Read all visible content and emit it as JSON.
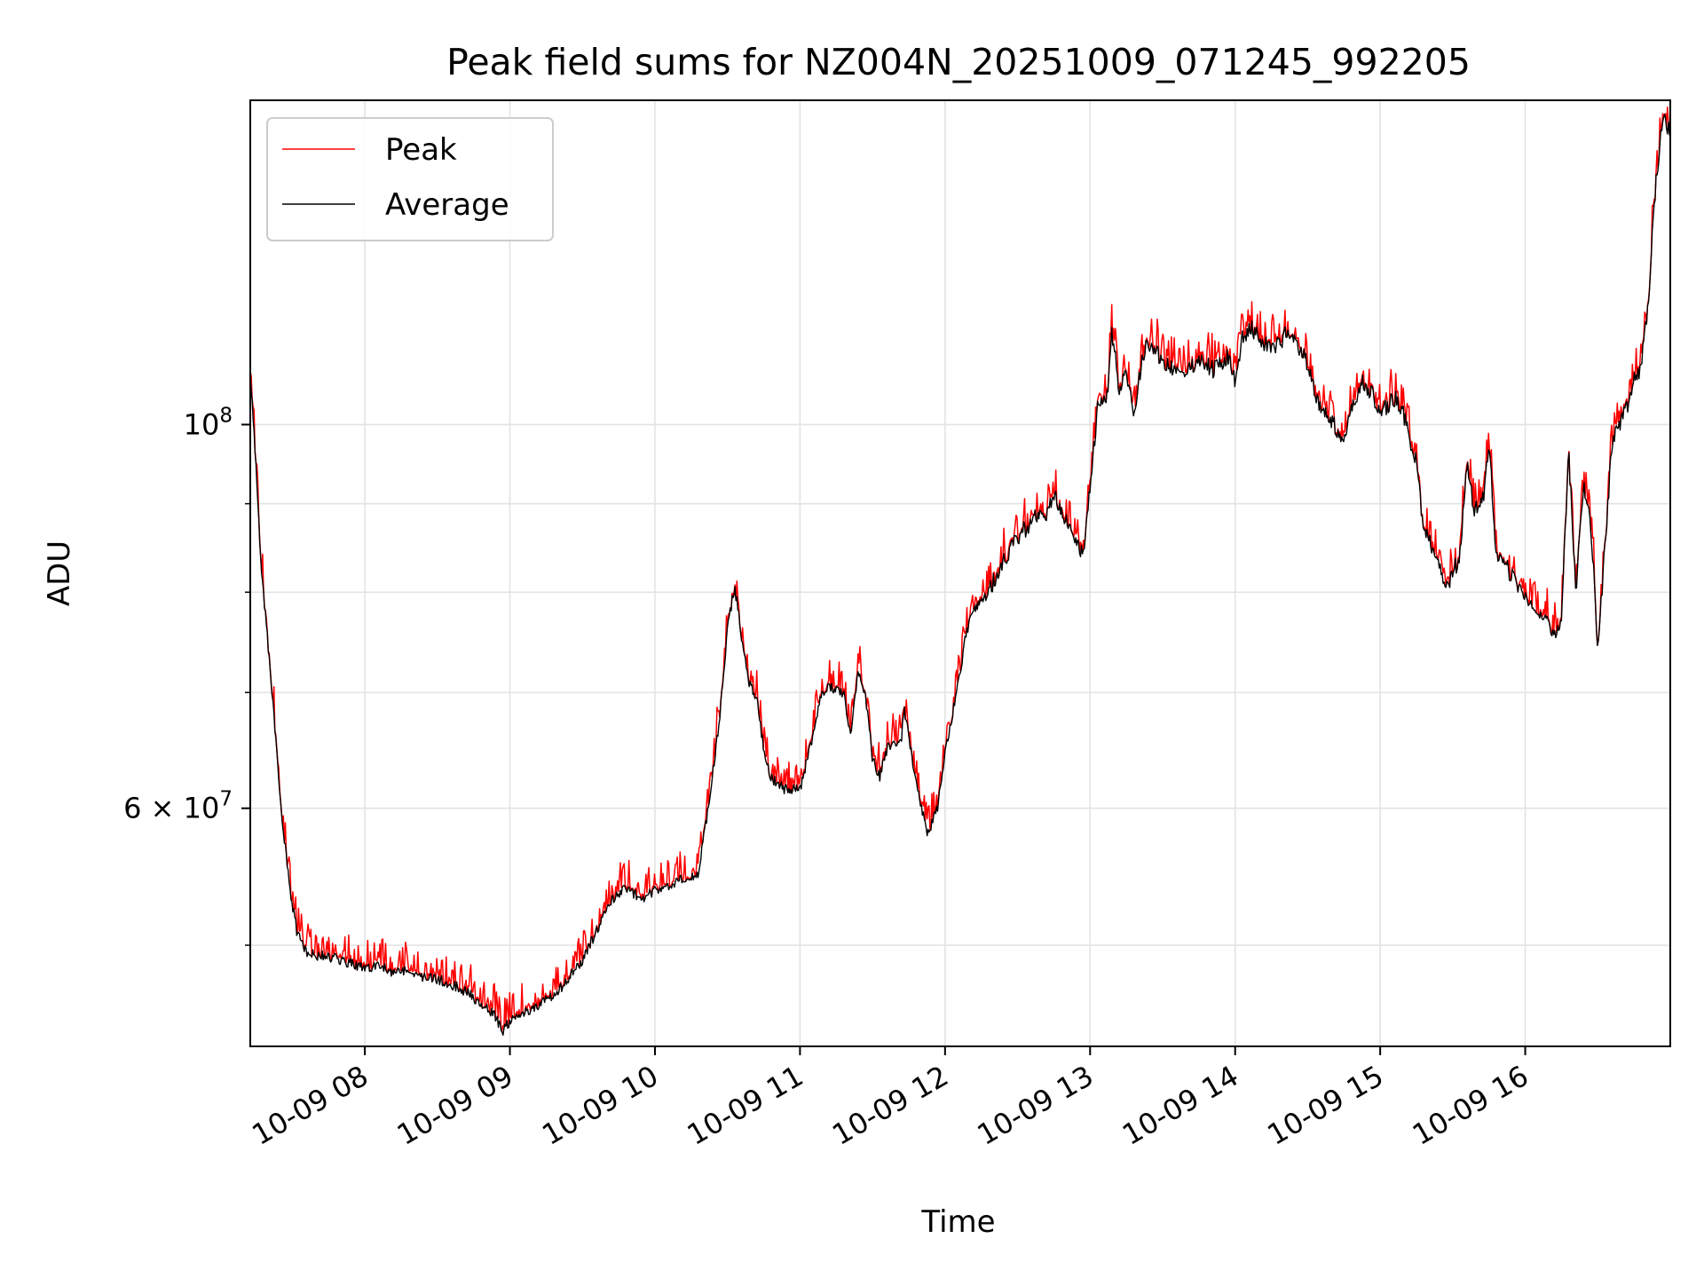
{
  "chart_data": {
    "type": "line",
    "title": "Peak field sums for NZ004N_20251009_071245_992205",
    "xlabel": "Time",
    "ylabel": "ADU",
    "y_scale": "log",
    "x_unit": "hours",
    "xlim": [
      7.21,
      17.0
    ],
    "ylim": [
      43700000,
      154000000
    ],
    "grid": true,
    "legend_placement": "upper-left",
    "x_ticks": [
      {
        "value": 8,
        "label": "10-09 08"
      },
      {
        "value": 9,
        "label": "10-09 09"
      },
      {
        "value": 10,
        "label": "10-09 10"
      },
      {
        "value": 11,
        "label": "10-09 11"
      },
      {
        "value": 12,
        "label": "10-09 12"
      },
      {
        "value": 13,
        "label": "10-09 13"
      },
      {
        "value": 14,
        "label": "10-09 14"
      },
      {
        "value": 15,
        "label": "10-09 15"
      },
      {
        "value": 16,
        "label": "10-09 16"
      }
    ],
    "y_major_ticks": [
      {
        "value": 60000000,
        "label_base": "6 × 10",
        "label_exp": "7"
      },
      {
        "value": 100000000,
        "label_base": "10",
        "label_exp": "8"
      }
    ],
    "y_minor_ticks": [
      50000000,
      70000000,
      80000000,
      90000000
    ],
    "average_points": [
      [
        7.21,
        108
      ],
      [
        7.26,
        90
      ],
      [
        7.3,
        80
      ],
      [
        7.36,
        70
      ],
      [
        7.42,
        60
      ],
      [
        7.48,
        54
      ],
      [
        7.53,
        51
      ],
      [
        7.6,
        49.5
      ],
      [
        7.7,
        49.3
      ],
      [
        7.8,
        49.1
      ],
      [
        7.9,
        48.8
      ],
      [
        8.0,
        48.5
      ],
      [
        8.1,
        48.6
      ],
      [
        8.2,
        48.2
      ],
      [
        8.3,
        48.4
      ],
      [
        8.4,
        47.9
      ],
      [
        8.5,
        47.8
      ],
      [
        8.6,
        47.4
      ],
      [
        8.7,
        47.0
      ],
      [
        8.8,
        46.2
      ],
      [
        8.9,
        45.5
      ],
      [
        8.95,
        44.6
      ],
      [
        9.0,
        45.2
      ],
      [
        9.1,
        45.7
      ],
      [
        9.2,
        46.2
      ],
      [
        9.3,
        46.7
      ],
      [
        9.4,
        47.8
      ],
      [
        9.5,
        49.0
      ],
      [
        9.6,
        51.0
      ],
      [
        9.7,
        53.0
      ],
      [
        9.8,
        54.0
      ],
      [
        9.9,
        53.2
      ],
      [
        10.0,
        53.8
      ],
      [
        10.1,
        54.2
      ],
      [
        10.2,
        54.6
      ],
      [
        10.3,
        55.0
      ],
      [
        10.38,
        61.0
      ],
      [
        10.45,
        68.0
      ],
      [
        10.5,
        76.0
      ],
      [
        10.55,
        81.0
      ],
      [
        10.6,
        75.0
      ],
      [
        10.65,
        71.0
      ],
      [
        10.7,
        69.5
      ],
      [
        10.75,
        65.0
      ],
      [
        10.8,
        62.5
      ],
      [
        10.9,
        61.5
      ],
      [
        11.0,
        61.5
      ],
      [
        11.1,
        66.5
      ],
      [
        11.15,
        70.0
      ],
      [
        11.2,
        70.5
      ],
      [
        11.3,
        70.0
      ],
      [
        11.35,
        66.0
      ],
      [
        11.4,
        72.0
      ],
      [
        11.45,
        70.0
      ],
      [
        11.5,
        64.0
      ],
      [
        11.55,
        62.5
      ],
      [
        11.6,
        65.0
      ],
      [
        11.7,
        66.0
      ],
      [
        11.72,
        68.5
      ],
      [
        11.8,
        62.0
      ],
      [
        11.88,
        58.0
      ],
      [
        11.95,
        60.0
      ],
      [
        12.0,
        64.5
      ],
      [
        12.08,
        70.0
      ],
      [
        12.15,
        76.0
      ],
      [
        12.2,
        78.0
      ],
      [
        12.3,
        80.0
      ],
      [
        12.4,
        83.5
      ],
      [
        12.5,
        86.0
      ],
      [
        12.6,
        88.0
      ],
      [
        12.7,
        89.0
      ],
      [
        12.75,
        91.5
      ],
      [
        12.85,
        87.0
      ],
      [
        12.95,
        84.0
      ],
      [
        13.0,
        92.0
      ],
      [
        13.05,
        102.0
      ],
      [
        13.12,
        104.0
      ],
      [
        13.15,
        113.0
      ],
      [
        13.2,
        105.0
      ],
      [
        13.25,
        107.0
      ],
      [
        13.3,
        101.0
      ],
      [
        13.35,
        108.0
      ],
      [
        13.4,
        112.0
      ],
      [
        13.45,
        110.0
      ],
      [
        13.55,
        108.0
      ],
      [
        13.65,
        106.5
      ],
      [
        13.75,
        109.0
      ],
      [
        13.85,
        107.5
      ],
      [
        13.95,
        109.5
      ],
      [
        14.0,
        105.5
      ],
      [
        14.05,
        112.0
      ],
      [
        14.1,
        114.0
      ],
      [
        14.2,
        111.5
      ],
      [
        14.3,
        111.0
      ],
      [
        14.35,
        113.0
      ],
      [
        14.45,
        110.5
      ],
      [
        14.5,
        108.0
      ],
      [
        14.55,
        104.0
      ],
      [
        14.6,
        102.5
      ],
      [
        14.7,
        99.5
      ],
      [
        14.75,
        97.0
      ],
      [
        14.8,
        102.5
      ],
      [
        14.88,
        106.0
      ],
      [
        14.95,
        104.0
      ],
      [
        15.0,
        101.5
      ],
      [
        15.1,
        103.5
      ],
      [
        15.15,
        102.0
      ],
      [
        15.25,
        95.0
      ],
      [
        15.3,
        87.0
      ],
      [
        15.4,
        83.0
      ],
      [
        15.45,
        80.0
      ],
      [
        15.55,
        84.0
      ],
      [
        15.6,
        95.0
      ],
      [
        15.65,
        89.0
      ],
      [
        15.72,
        91.5
      ],
      [
        15.75,
        97.5
      ],
      [
        15.8,
        84.0
      ],
      [
        15.9,
        82.0
      ],
      [
        15.95,
        80.5
      ],
      [
        16.05,
        78.5
      ],
      [
        16.15,
        77.0
      ],
      [
        16.2,
        75.5
      ],
      [
        16.25,
        77.0
      ],
      [
        16.3,
        96.0
      ],
      [
        16.35,
        80.0
      ],
      [
        16.4,
        92.0
      ],
      [
        16.45,
        88.0
      ],
      [
        16.5,
        74.0
      ],
      [
        16.55,
        85.0
      ],
      [
        16.6,
        98.0
      ],
      [
        16.7,
        102.0
      ],
      [
        16.75,
        106.0
      ],
      [
        16.8,
        108.0
      ],
      [
        16.85,
        118.0
      ],
      [
        16.9,
        138.0
      ],
      [
        16.95,
        150.0
      ],
      [
        17.0,
        148.0
      ]
    ]
  },
  "legend": [
    {
      "label": "Peak",
      "color": "#ff0000"
    },
    {
      "label": "Average",
      "color": "#000000"
    }
  ],
  "colors": {
    "peak": "#ff0000",
    "average": "#000000",
    "grid": "#e3e3e3"
  }
}
